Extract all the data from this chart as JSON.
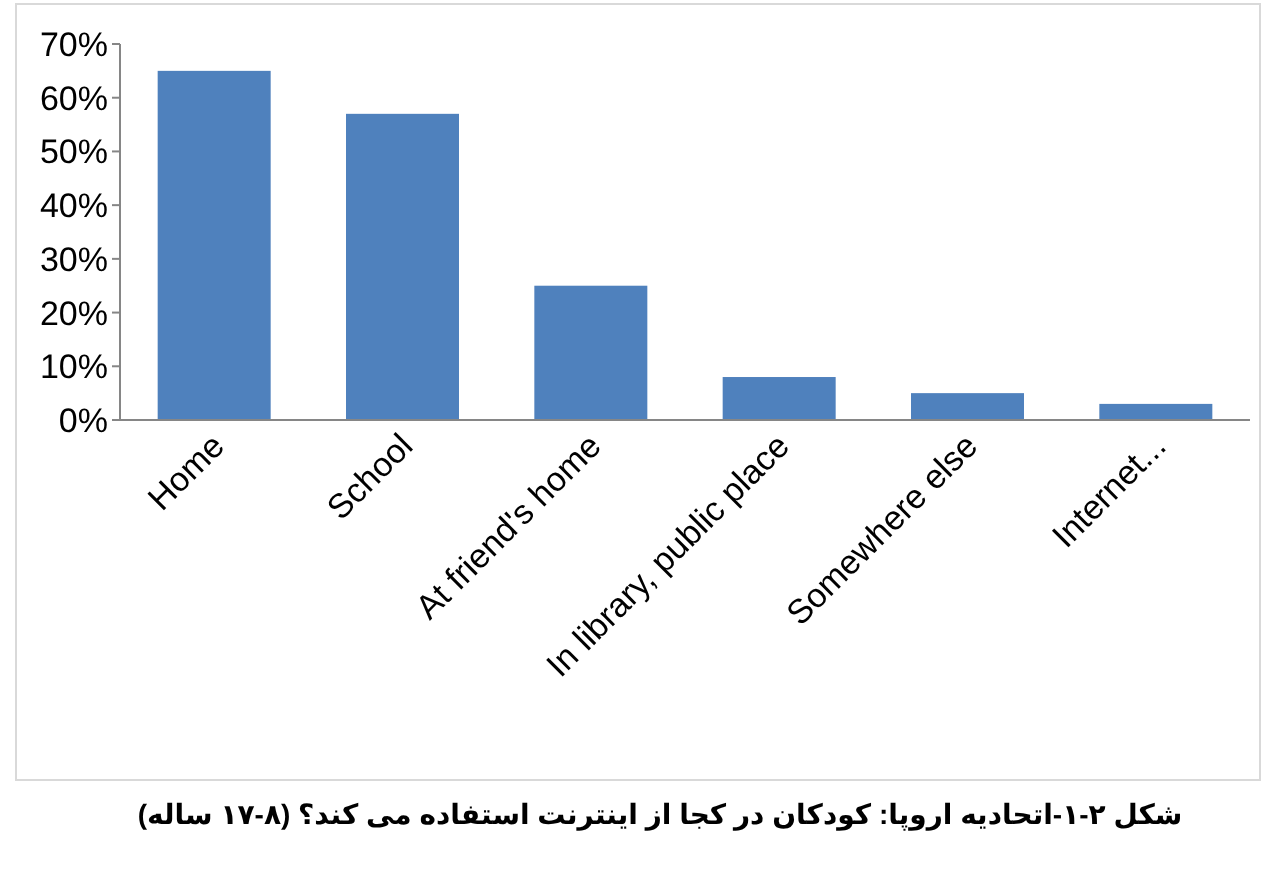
{
  "chart_data": {
    "type": "bar",
    "categories": [
      "Home",
      "School",
      "At friend's home",
      "In library, public place",
      "Somewhere else",
      "Internet..."
    ],
    "values": [
      65,
      57,
      25,
      8,
      5,
      3
    ],
    "color": "#4f81bd",
    "ylim": [
      0,
      70
    ],
    "yticks": [
      {
        "value": 0,
        "label": "0%"
      },
      {
        "value": 10,
        "label": "10%"
      },
      {
        "value": 20,
        "label": "20%"
      },
      {
        "value": 30,
        "label": "30%"
      },
      {
        "value": 40,
        "label": "40%"
      },
      {
        "value": 50,
        "label": "50%"
      },
      {
        "value": 60,
        "label": "60%"
      },
      {
        "value": 70,
        "label": "70%"
      }
    ],
    "grid": false,
    "annotations": [
      "شکل ۲-۱-اتحادیه اروپا: کودکان در کجا از اینترنت استفاده می کند؟ (۸-۱۷ ساله)"
    ]
  }
}
